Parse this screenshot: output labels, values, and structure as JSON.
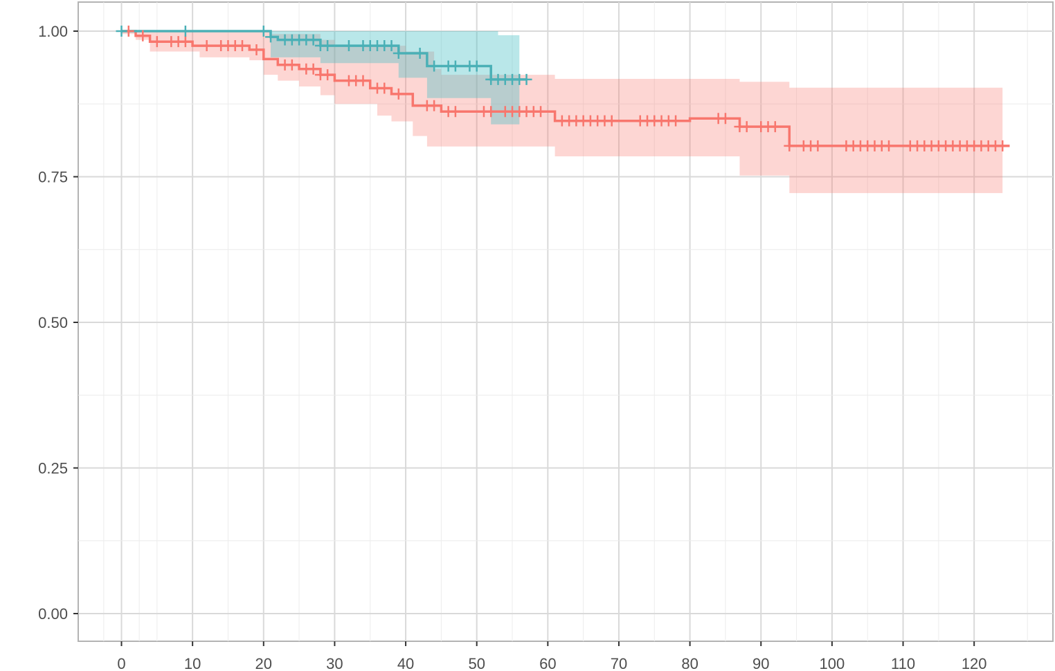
{
  "chart_data": {
    "type": "line",
    "subtype": "kaplan-meier",
    "title": "",
    "xlabel": "",
    "ylabel": "",
    "xlim": [
      -6,
      131
    ],
    "ylim": [
      -0.05,
      1.05
    ],
    "x_ticks": [
      0,
      10,
      20,
      30,
      40,
      50,
      60,
      70,
      80,
      90,
      100,
      110,
      120
    ],
    "x_tick_labels": [
      "0",
      "10",
      "20",
      "30",
      "40",
      "50",
      "60",
      "70",
      "80",
      "90",
      "100",
      "110",
      "120"
    ],
    "y_ticks": [
      0,
      0.25,
      0.5,
      0.75,
      1.0
    ],
    "y_tick_labels": [
      "0.00",
      "0.25",
      "0.50",
      "0.75",
      "1.00"
    ],
    "grid": true,
    "legend": "none",
    "series": [
      {
        "color": "#F8766D",
        "fill_color": "#F8766D",
        "steps": [
          [
            0,
            1.0
          ],
          [
            2,
            0.992
          ],
          [
            4,
            0.982
          ],
          [
            9,
            0.982
          ],
          [
            10,
            0.975
          ],
          [
            18,
            0.968
          ],
          [
            20,
            0.952
          ],
          [
            22,
            0.942
          ],
          [
            25,
            0.935
          ],
          [
            28,
            0.925
          ],
          [
            30,
            0.915
          ],
          [
            35,
            0.902
          ],
          [
            38,
            0.892
          ],
          [
            41,
            0.872
          ],
          [
            45,
            0.862
          ],
          [
            60,
            0.862
          ],
          [
            61,
            0.846
          ],
          [
            80,
            0.85
          ],
          [
            87,
            0.836
          ],
          [
            94,
            0.803
          ],
          [
            125,
            0.803
          ]
        ],
        "ci_lower": [
          [
            0,
            0.995
          ],
          [
            2,
            0.985
          ],
          [
            4,
            0.965
          ],
          [
            11,
            0.955
          ],
          [
            18,
            0.95
          ],
          [
            20,
            0.925
          ],
          [
            22,
            0.915
          ],
          [
            25,
            0.905
          ],
          [
            28,
            0.89
          ],
          [
            30,
            0.875
          ],
          [
            36,
            0.855
          ],
          [
            38,
            0.845
          ],
          [
            41,
            0.82
          ],
          [
            43,
            0.802
          ],
          [
            61,
            0.785
          ],
          [
            87,
            0.752
          ],
          [
            94,
            0.722
          ],
          [
            124,
            0.722
          ]
        ],
        "ci_upper": [
          [
            0,
            1.0
          ],
          [
            20,
            1.0
          ],
          [
            21,
            0.995
          ],
          [
            28,
            0.985
          ],
          [
            30,
            0.975
          ],
          [
            40,
            0.965
          ],
          [
            44,
            0.935
          ],
          [
            45,
            0.925
          ],
          [
            60,
            0.925
          ],
          [
            61,
            0.918
          ],
          [
            87,
            0.913
          ],
          [
            94,
            0.903
          ],
          [
            124,
            0.903
          ]
        ],
        "censor_x": [
          1,
          3,
          5,
          7,
          8,
          9,
          12,
          14,
          15,
          16,
          17,
          19,
          23,
          24,
          26,
          27,
          28,
          29,
          32,
          33,
          34,
          36,
          37,
          39,
          43,
          44,
          46,
          47,
          51,
          52,
          54,
          55,
          56,
          57,
          58,
          59,
          62,
          63,
          64,
          65,
          66,
          67,
          68,
          69,
          73,
          74,
          75,
          76,
          77,
          78,
          84,
          85,
          87,
          88,
          90,
          91,
          92,
          94,
          96,
          97,
          98,
          102,
          103,
          104,
          105,
          106,
          107,
          108,
          111,
          112,
          113,
          114,
          115,
          116,
          117,
          118,
          119,
          120,
          121,
          122,
          123,
          124
        ]
      },
      {
        "color": "#00BFC4",
        "line_color": "#4ab0b6",
        "fill_color": "#47c1c6",
        "steps": [
          [
            0,
            1.0
          ],
          [
            21,
            0.99
          ],
          [
            22,
            0.985
          ],
          [
            28,
            0.975
          ],
          [
            39,
            0.962
          ],
          [
            43,
            0.94
          ],
          [
            52,
            0.917
          ],
          [
            57,
            0.917
          ]
        ],
        "ci_lower": [
          [
            21,
            0.955
          ],
          [
            28,
            0.945
          ],
          [
            39,
            0.92
          ],
          [
            43,
            0.885
          ],
          [
            52,
            0.84
          ],
          [
            56,
            0.84
          ]
        ],
        "ci_upper": [
          [
            21,
            1.0
          ],
          [
            52,
            1.0
          ],
          [
            53,
            0.993
          ],
          [
            56,
            0.993
          ]
        ],
        "censor_x": [
          0,
          9,
          20,
          21,
          23,
          24,
          25,
          26,
          27,
          28,
          29,
          32,
          34,
          35,
          36,
          37,
          38,
          39,
          42,
          44,
          46,
          47,
          49,
          50,
          52,
          53,
          54,
          55,
          56,
          57
        ]
      }
    ]
  }
}
